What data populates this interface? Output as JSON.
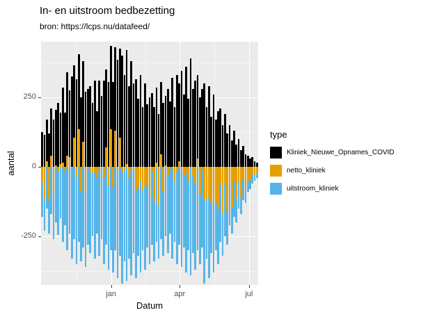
{
  "title": "In- en uitstroom bedbezetting",
  "subtitle": "bron: https://lcps.nu/datafeed/",
  "x_axis_label": "Datum",
  "y_axis_label": "aantal",
  "legend": {
    "title": "type",
    "items": [
      {
        "label": "Kliniek_Nieuwe_Opnames_COVID",
        "color": "#000000"
      },
      {
        "label": "netto_kliniek",
        "color": "#E69F00"
      },
      {
        "label": "uitstroom_kliniek",
        "color": "#56B4E9"
      }
    ]
  },
  "panel": {
    "background": "#EBEBEB",
    "grid_color": "#FFFFFF"
  },
  "chart_data": {
    "type": "bar",
    "title": "In- en uitstroom bedbezetting",
    "subtitle": "bron: https://lcps.nu/datafeed/",
    "xlabel": "Datum",
    "ylabel": "aantal",
    "x_unit": "days from plot start, 3-day bins (values estimated from dense daily bars)",
    "x_step_days": 3,
    "x_domain_days": [
      0,
      285
    ],
    "x_ticks": [
      {
        "label": "jan",
        "day": 92
      },
      {
        "label": "apr",
        "day": 182
      },
      {
        "label": "jul",
        "day": 273
      }
    ],
    "x_minor_days": [
      47,
      137,
      227
    ],
    "ylim": [
      -425,
      450
    ],
    "y_ticks": [
      250,
      0,
      -250
    ],
    "y_minor": [
      375,
      125,
      -125,
      -375
    ],
    "grid": true,
    "legend_position": "right",
    "draw_order": [
      0,
      2,
      1
    ],
    "series": [
      {
        "name": "Kliniek_Nieuwe_Opnames_COVID",
        "color": "#000000",
        "values": [
          125,
          115,
          170,
          120,
          210,
          170,
          205,
          230,
          195,
          285,
          195,
          340,
          275,
          325,
          365,
          315,
          405,
          250,
          380,
          270,
          280,
          290,
          230,
          310,
          200,
          310,
          255,
          310,
          350,
          305,
          435,
          305,
          430,
          385,
          425,
          400,
          330,
          420,
          290,
          380,
          300,
          315,
          245,
          330,
          215,
          300,
          225,
          250,
          265,
          215,
          285,
          190,
          305,
          230,
          255,
          280,
          235,
          320,
          215,
          330,
          300,
          345,
          260,
          360,
          245,
          390,
          280,
          310,
          330,
          250,
          280,
          300,
          215,
          290,
          180,
          260,
          170,
          200,
          210,
          150,
          190,
          120,
          150,
          95,
          130,
          80,
          100,
          60,
          75,
          45,
          40,
          30,
          35,
          20,
          15
        ]
      },
      {
        "name": "netto_kliniek",
        "color": "#E69F00",
        "values": [
          -55,
          -115,
          20,
          -120,
          40,
          -90,
          5,
          -15,
          10,
          15,
          -15,
          40,
          35,
          -5,
          105,
          -35,
          135,
          -90,
          90,
          -90,
          0,
          -20,
          -20,
          -20,
          -40,
          -10,
          -5,
          -40,
          70,
          -65,
          135,
          -75,
          130,
          -15,
          105,
          -20,
          -10,
          10,
          -40,
          -10,
          -10,
          -85,
          -75,
          -50,
          -85,
          -70,
          -65,
          -100,
          -15,
          -125,
          15,
          -140,
          45,
          -90,
          5,
          -30,
          -5,
          -10,
          -55,
          -20,
          20,
          -15,
          -30,
          -20,
          -55,
          0,
          -30,
          -60,
          30,
          -100,
          -10,
          -120,
          -115,
          -110,
          -130,
          -120,
          -130,
          -150,
          -60,
          -170,
          -60,
          -160,
          -60,
          -145,
          -50,
          -120,
          -50,
          -110,
          -45,
          -85,
          -50,
          -50,
          -25,
          -30,
          -25
        ]
      },
      {
        "name": "uitstroom_kliniek",
        "color": "#56B4E9",
        "values": [
          -180,
          -230,
          -150,
          -240,
          -170,
          -260,
          -200,
          -245,
          -185,
          -270,
          -210,
          -300,
          -240,
          -330,
          -260,
          -350,
          -270,
          -340,
          -290,
          -360,
          -280,
          -310,
          -250,
          -330,
          -240,
          -320,
          -260,
          -350,
          -280,
          -370,
          -300,
          -380,
          -300,
          -400,
          -320,
          -420,
          -340,
          -410,
          -330,
          -390,
          -310,
          -400,
          -320,
          -380,
          -300,
          -370,
          -290,
          -350,
          -280,
          -340,
          -270,
          -330,
          -260,
          -320,
          -250,
          -310,
          -240,
          -330,
          -270,
          -350,
          -280,
          -360,
          -290,
          -380,
          -300,
          -390,
          -310,
          -370,
          -300,
          -350,
          -290,
          -420,
          -330,
          -400,
          -310,
          -380,
          -300,
          -350,
          -270,
          -320,
          -250,
          -280,
          -210,
          -240,
          -180,
          -200,
          -150,
          -170,
          -120,
          -130,
          -90,
          -80,
          -60,
          -50,
          -40
        ]
      }
    ]
  }
}
